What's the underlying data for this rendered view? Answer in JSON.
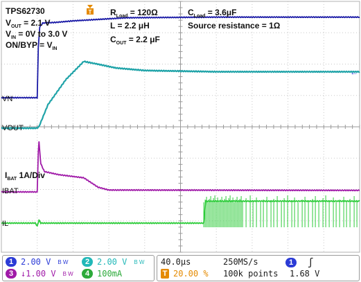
{
  "chart_data": {
    "type": "line",
    "title_block": {
      "device": "TPS62730",
      "vout": [
        "V",
        "OUT",
        " = 2.1 V"
      ],
      "vin": [
        "V",
        "IN",
        " = 0V to 3.0 V"
      ],
      "onbyp": [
        "ON/BYP = V",
        "IN",
        ""
      ],
      "rload": [
        "R",
        "Load",
        " = 120Ω"
      ],
      "inductor": "L = 2.2 μH",
      "cout": [
        "C",
        "OUT",
        " = 2.2 μF"
      ],
      "cload": [
        "C",
        "Load",
        " = 3.6μF"
      ],
      "source": "Source resistance = 1Ω",
      "ibat_scale": [
        "I",
        "BAT",
        " 1A/Div"
      ]
    },
    "x_divisions": 10,
    "y_divisions": 8,
    "time_per_div_us": 40,
    "series": [
      {
        "name": "VN",
        "channel": 1,
        "color": "#1a1aa6",
        "points": [
          [
            0,
            0
          ],
          [
            0.99,
            0
          ],
          [
            1.0,
            0
          ],
          [
            1.03,
            1.6
          ],
          [
            1.07,
            2.25
          ],
          [
            1.15,
            2.38
          ],
          [
            1.5,
            2.4
          ],
          [
            2.0,
            2.45
          ],
          [
            3.5,
            2.55
          ],
          [
            6,
            2.57
          ],
          [
            10,
            2.57
          ]
        ]
      },
      {
        "name": "VOUT",
        "channel": 2,
        "color": "#1fa3a8",
        "points": [
          [
            0,
            0
          ],
          [
            0.99,
            0
          ],
          [
            1.05,
            0.05
          ],
          [
            1.3,
            0.75
          ],
          [
            1.8,
            1.55
          ],
          [
            2.3,
            2.13
          ],
          [
            2.7,
            2.04
          ],
          [
            3.2,
            1.92
          ],
          [
            4.0,
            1.84
          ],
          [
            6,
            1.8
          ],
          [
            10,
            1.8
          ]
        ]
      },
      {
        "name": "IBAT",
        "channel": 3,
        "color": "#a01aa8",
        "points": [
          [
            0,
            0
          ],
          [
            0.99,
            0
          ],
          [
            1.0,
            0
          ],
          [
            1.03,
            1.3
          ],
          [
            1.05,
            1.6
          ],
          [
            1.1,
            0.9
          ],
          [
            1.2,
            0.65
          ],
          [
            1.6,
            0.55
          ],
          [
            2.3,
            0.45
          ],
          [
            2.7,
            0.15
          ],
          [
            3,
            0.06
          ],
          [
            10,
            0.05
          ]
        ]
      },
      {
        "name": "IL",
        "channel": 4,
        "color": "#2dcc3a",
        "points": [
          [
            0,
            0
          ],
          [
            0.95,
            0
          ],
          [
            1.0,
            -0.1
          ],
          [
            1.05,
            0.1
          ],
          [
            1.1,
            0
          ],
          [
            5.65,
            0
          ],
          [
            5.7,
            0.7
          ],
          [
            10,
            0.7
          ]
        ]
      }
    ],
    "markers": {
      "trigger": "T",
      "right_arrow": "←"
    }
  },
  "status": {
    "ch1": {
      "num": "1",
      "color": "#2b3bd6",
      "value": "2.00 V",
      "bw": "B W"
    },
    "ch2": {
      "num": "2",
      "color": "#22b8b8",
      "value": "2.00 V",
      "bw": "B W"
    },
    "ch3": {
      "num": "3",
      "color": "#a01aa8",
      "value": "↓1.00 V",
      "bw": "B W"
    },
    "ch4": {
      "num": "4",
      "color": "#2daa3a",
      "value": "100mA"
    },
    "timebase": "40.0μs",
    "sample_rate": "250MS/s",
    "trigger_pos": "20.00 %",
    "points": "100k points",
    "trig_ch": {
      "num": "1",
      "color": "#2b3bd6",
      "slope": "ʃ",
      "level": "1.68 V"
    }
  }
}
